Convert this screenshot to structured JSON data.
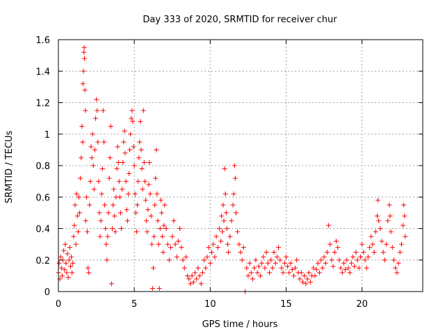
{
  "chart_data": {
    "type": "scatter",
    "title": "Day 333 of 2020, SRMTID for receiver chur",
    "xlabel": "GPS time / hours",
    "ylabel": "SRMTID / TECUs",
    "xlim": [
      0,
      24
    ],
    "ylim": [
      0,
      1.6
    ],
    "grid": true,
    "marker": "+",
    "x_ticks": [
      "0",
      "5",
      "10",
      "15",
      "20"
    ],
    "y_ticks": [
      "0",
      "0.2",
      "0.4",
      "0.6",
      "0.8",
      "1",
      "1.2",
      "1.4",
      "1.6"
    ],
    "series": [
      {
        "name": "SRMTID",
        "color": "#ff0000",
        "points": [
          [
            0.0,
            0.12
          ],
          [
            0.05,
            0.18
          ],
          [
            0.1,
            0.08
          ],
          [
            0.15,
            0.22
          ],
          [
            0.2,
            0.15
          ],
          [
            0.25,
            0.1
          ],
          [
            0.3,
            0.2
          ],
          [
            0.35,
            0.26
          ],
          [
            0.4,
            0.14
          ],
          [
            0.45,
            0.3
          ],
          [
            0.5,
            0.18
          ],
          [
            0.55,
            0.12
          ],
          [
            0.6,
            0.24
          ],
          [
            0.65,
            0.09
          ],
          [
            0.7,
            0.2
          ],
          [
            0.75,
            0.28
          ],
          [
            0.8,
            0.16
          ],
          [
            0.85,
            0.22
          ],
          [
            0.9,
            0.12
          ],
          [
            0.95,
            0.18
          ],
          [
            1.0,
            0.35
          ],
          [
            1.05,
            0.42
          ],
          [
            1.1,
            0.55
          ],
          [
            1.15,
            0.3
          ],
          [
            1.2,
            0.62
          ],
          [
            1.25,
            0.48
          ],
          [
            1.3,
            0.38
          ],
          [
            1.35,
            0.6
          ],
          [
            1.4,
            0.5
          ],
          [
            1.45,
            0.72
          ],
          [
            1.5,
            0.85
          ],
          [
            1.55,
            1.05
          ],
          [
            1.6,
            0.95
          ],
          [
            1.62,
            1.32
          ],
          [
            1.65,
            1.4
          ],
          [
            1.68,
            1.52
          ],
          [
            1.7,
            1.55
          ],
          [
            1.72,
            1.48
          ],
          [
            1.75,
            1.28
          ],
          [
            1.78,
            1.15
          ],
          [
            1.8,
            0.45
          ],
          [
            1.85,
            0.6
          ],
          [
            1.9,
            0.38
          ],
          [
            1.95,
            0.15
          ],
          [
            2.0,
            0.12
          ],
          [
            2.05,
            0.55
          ],
          [
            2.1,
            0.7
          ],
          [
            2.15,
            0.92
          ],
          [
            2.2,
            0.85
          ],
          [
            2.25,
            1.0
          ],
          [
            2.3,
            0.8
          ],
          [
            2.35,
            0.65
          ],
          [
            2.4,
            0.9
          ],
          [
            2.45,
            1.1
          ],
          [
            2.5,
            1.22
          ],
          [
            2.55,
            1.15
          ],
          [
            2.6,
            0.95
          ],
          [
            2.65,
            0.7
          ],
          [
            2.7,
            0.5
          ],
          [
            2.75,
            0.35
          ],
          [
            2.8,
            0.45
          ],
          [
            2.85,
            0.62
          ],
          [
            2.9,
            0.78
          ],
          [
            2.95,
            1.15
          ],
          [
            3.0,
            0.95
          ],
          [
            3.05,
            0.55
          ],
          [
            3.1,
            0.4
          ],
          [
            3.15,
            0.3
          ],
          [
            3.2,
            0.2
          ],
          [
            3.25,
            0.35
          ],
          [
            3.3,
            0.5
          ],
          [
            3.35,
            0.72
          ],
          [
            3.4,
            0.85
          ],
          [
            3.45,
            1.05
          ],
          [
            3.5,
            0.05
          ],
          [
            3.55,
            0.4
          ],
          [
            3.6,
            0.55
          ],
          [
            3.65,
            0.65
          ],
          [
            3.7,
            0.48
          ],
          [
            3.75,
            0.38
          ],
          [
            3.8,
            0.6
          ],
          [
            3.85,
            0.78
          ],
          [
            3.9,
            0.92
          ],
          [
            3.95,
            0.82
          ],
          [
            4.0,
            0.7
          ],
          [
            4.05,
            0.6
          ],
          [
            4.1,
            0.5
          ],
          [
            4.15,
            0.4
          ],
          [
            4.2,
            0.65
          ],
          [
            4.25,
            0.82
          ],
          [
            4.3,
            0.95
          ],
          [
            4.35,
            1.02
          ],
          [
            4.4,
            0.88
          ],
          [
            4.45,
            0.7
          ],
          [
            4.5,
            0.52
          ],
          [
            4.55,
            0.45
          ],
          [
            4.6,
            0.62
          ],
          [
            4.65,
            0.75
          ],
          [
            4.7,
            0.9
          ],
          [
            4.75,
            1.0
          ],
          [
            4.8,
            1.1
          ],
          [
            4.85,
            1.15
          ],
          [
            4.9,
            1.08
          ],
          [
            4.95,
            0.92
          ],
          [
            5.0,
            0.8
          ],
          [
            5.05,
            0.62
          ],
          [
            5.1,
            0.5
          ],
          [
            5.15,
            0.38
          ],
          [
            5.2,
            0.55
          ],
          [
            5.25,
            0.7
          ],
          [
            5.3,
            0.85
          ],
          [
            5.35,
            0.95
          ],
          [
            5.4,
            1.08
          ],
          [
            5.45,
            0.9
          ],
          [
            5.5,
            0.78
          ],
          [
            5.55,
            0.65
          ],
          [
            5.6,
            1.15
          ],
          [
            5.65,
            0.82
          ],
          [
            5.7,
            0.7
          ],
          [
            5.75,
            0.58
          ],
          [
            5.8,
            0.45
          ],
          [
            5.85,
            0.38
          ],
          [
            5.9,
            0.52
          ],
          [
            5.95,
            0.68
          ],
          [
            6.0,
            0.82
          ],
          [
            6.05,
            0.62
          ],
          [
            6.1,
            0.48
          ],
          [
            6.15,
            0.3
          ],
          [
            6.2,
            0.02
          ],
          [
            6.25,
            0.15
          ],
          [
            6.3,
            0.35
          ],
          [
            6.35,
            0.55
          ],
          [
            6.4,
            0.72
          ],
          [
            6.45,
            0.9
          ],
          [
            6.5,
            0.62
          ],
          [
            6.55,
            0.45
          ],
          [
            6.6,
            0.3
          ],
          [
            6.65,
            0.02
          ],
          [
            6.7,
            0.4
          ],
          [
            6.75,
            0.58
          ],
          [
            6.8,
            0.5
          ],
          [
            6.85,
            0.35
          ],
          [
            6.9,
            0.25
          ],
          [
            6.95,
            0.42
          ],
          [
            7.0,
            0.55
          ],
          [
            7.1,
            0.4
          ],
          [
            7.2,
            0.3
          ],
          [
            7.3,
            0.2
          ],
          [
            7.4,
            0.28
          ],
          [
            7.5,
            0.35
          ],
          [
            7.6,
            0.45
          ],
          [
            7.7,
            0.3
          ],
          [
            7.8,
            0.22
          ],
          [
            7.9,
            0.32
          ],
          [
            8.0,
            0.4
          ],
          [
            8.1,
            0.28
          ],
          [
            8.2,
            0.2
          ],
          [
            8.3,
            0.15
          ],
          [
            8.4,
            0.22
          ],
          [
            8.5,
            0.1
          ],
          [
            8.6,
            0.08
          ],
          [
            8.7,
            0.05
          ],
          [
            8.8,
            0.1
          ],
          [
            8.9,
            0.06
          ],
          [
            9.0,
            0.12
          ],
          [
            9.1,
            0.08
          ],
          [
            9.2,
            0.15
          ],
          [
            9.3,
            0.1
          ],
          [
            9.4,
            0.05
          ],
          [
            9.5,
            0.12
          ],
          [
            9.6,
            0.2
          ],
          [
            9.7,
            0.15
          ],
          [
            9.8,
            0.22
          ],
          [
            9.9,
            0.28
          ],
          [
            10.0,
            0.18
          ],
          [
            10.1,
            0.25
          ],
          [
            10.2,
            0.3
          ],
          [
            10.3,
            0.22
          ],
          [
            10.4,
            0.35
          ],
          [
            10.5,
            0.28
          ],
          [
            10.6,
            0.4
          ],
          [
            10.7,
            0.32
          ],
          [
            10.75,
            0.48
          ],
          [
            10.8,
            0.38
          ],
          [
            10.85,
            0.55
          ],
          [
            10.9,
            0.45
          ],
          [
            10.95,
            0.78
          ],
          [
            11.0,
            0.62
          ],
          [
            11.05,
            0.5
          ],
          [
            11.1,
            0.4
          ],
          [
            11.15,
            0.3
          ],
          [
            11.2,
            0.25
          ],
          [
            11.3,
            0.35
          ],
          [
            11.4,
            0.45
          ],
          [
            11.5,
            0.55
          ],
          [
            11.55,
            0.62
          ],
          [
            11.6,
            0.8
          ],
          [
            11.65,
            0.72
          ],
          [
            11.7,
            0.5
          ],
          [
            11.8,
            0.38
          ],
          [
            11.9,
            0.3
          ],
          [
            12.0,
            0.25
          ],
          [
            12.1,
            0.2
          ],
          [
            12.2,
            0.28
          ],
          [
            12.3,
            0.0
          ],
          [
            12.4,
            0.15
          ],
          [
            12.5,
            0.1
          ],
          [
            12.6,
            0.18
          ],
          [
            12.7,
            0.12
          ],
          [
            12.8,
            0.08
          ],
          [
            12.9,
            0.15
          ],
          [
            13.0,
            0.2
          ],
          [
            13.1,
            0.12
          ],
          [
            13.2,
            0.16
          ],
          [
            13.3,
            0.1
          ],
          [
            13.4,
            0.18
          ],
          [
            13.5,
            0.22
          ],
          [
            13.6,
            0.15
          ],
          [
            13.7,
            0.25
          ],
          [
            13.8,
            0.18
          ],
          [
            13.9,
            0.12
          ],
          [
            14.0,
            0.2
          ],
          [
            14.1,
            0.15
          ],
          [
            14.2,
            0.25
          ],
          [
            14.3,
            0.18
          ],
          [
            14.4,
            0.22
          ],
          [
            14.5,
            0.28
          ],
          [
            14.6,
            0.2
          ],
          [
            14.7,
            0.15
          ],
          [
            14.8,
            0.12
          ],
          [
            14.9,
            0.18
          ],
          [
            15.0,
            0.22
          ],
          [
            15.1,
            0.16
          ],
          [
            15.2,
            0.12
          ],
          [
            15.3,
            0.18
          ],
          [
            15.4,
            0.14
          ],
          [
            15.5,
            0.1
          ],
          [
            15.6,
            0.15
          ],
          [
            15.7,
            0.2
          ],
          [
            15.8,
            0.12
          ],
          [
            15.9,
            0.08
          ],
          [
            16.0,
            0.12
          ],
          [
            16.1,
            0.06
          ],
          [
            16.2,
            0.1
          ],
          [
            16.3,
            0.05
          ],
          [
            16.4,
            0.08
          ],
          [
            16.5,
            0.12
          ],
          [
            16.6,
            0.06
          ],
          [
            16.7,
            0.1
          ],
          [
            16.8,
            0.15
          ],
          [
            16.9,
            0.1
          ],
          [
            17.0,
            0.14
          ],
          [
            17.1,
            0.18
          ],
          [
            17.2,
            0.12
          ],
          [
            17.3,
            0.2
          ],
          [
            17.4,
            0.15
          ],
          [
            17.5,
            0.22
          ],
          [
            17.6,
            0.18
          ],
          [
            17.7,
            0.25
          ],
          [
            17.8,
            0.42
          ],
          [
            17.9,
            0.3
          ],
          [
            18.0,
            0.2
          ],
          [
            18.1,
            0.16
          ],
          [
            18.2,
            0.25
          ],
          [
            18.3,
            0.32
          ],
          [
            18.4,
            0.28
          ],
          [
            18.5,
            0.2
          ],
          [
            18.6,
            0.15
          ],
          [
            18.7,
            0.12
          ],
          [
            18.8,
            0.18
          ],
          [
            18.9,
            0.14
          ],
          [
            19.0,
            0.2
          ],
          [
            19.1,
            0.15
          ],
          [
            19.2,
            0.12
          ],
          [
            19.3,
            0.18
          ],
          [
            19.4,
            0.22
          ],
          [
            19.5,
            0.16
          ],
          [
            19.6,
            0.25
          ],
          [
            19.7,
            0.2
          ],
          [
            19.8,
            0.15
          ],
          [
            19.9,
            0.22
          ],
          [
            20.0,
            0.3
          ],
          [
            20.1,
            0.25
          ],
          [
            20.2,
            0.2
          ],
          [
            20.3,
            0.15
          ],
          [
            20.4,
            0.22
          ],
          [
            20.5,
            0.28
          ],
          [
            20.6,
            0.35
          ],
          [
            20.7,
            0.3
          ],
          [
            20.8,
            0.25
          ],
          [
            20.9,
            0.38
          ],
          [
            21.0,
            0.48
          ],
          [
            21.05,
            0.58
          ],
          [
            21.1,
            0.45
          ],
          [
            21.2,
            0.4
          ],
          [
            21.3,
            0.32
          ],
          [
            21.4,
            0.25
          ],
          [
            21.5,
            0.2
          ],
          [
            21.6,
            0.3
          ],
          [
            21.7,
            0.45
          ],
          [
            21.8,
            0.55
          ],
          [
            21.85,
            0.48
          ],
          [
            21.9,
            0.38
          ],
          [
            22.0,
            0.28
          ],
          [
            22.1,
            0.2
          ],
          [
            22.2,
            0.15
          ],
          [
            22.3,
            0.12
          ],
          [
            22.4,
            0.18
          ],
          [
            22.5,
            0.25
          ],
          [
            22.6,
            0.3
          ],
          [
            22.7,
            0.42
          ],
          [
            22.75,
            0.55
          ],
          [
            22.8,
            0.48
          ],
          [
            22.85,
            0.35
          ]
        ]
      }
    ]
  }
}
